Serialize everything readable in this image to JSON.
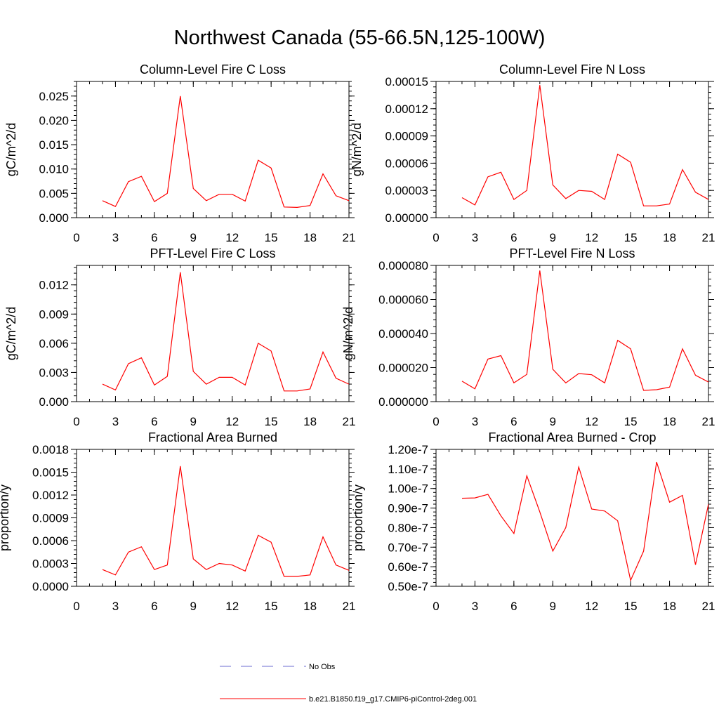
{
  "page_title": "Northwest Canada (55-66.5N,125-100W)",
  "legend": {
    "items": [
      {
        "label": "No Obs",
        "color": "#6b6bd0",
        "dashed": true
      },
      {
        "label": "b.e21.B1850.f19_g17.CMIP6-piControl-2deg.001",
        "color": "#ff0000",
        "dashed": false
      }
    ]
  },
  "chart_data": [
    {
      "type": "line",
      "title": "Column-Level Fire C Loss",
      "ylabel": "gC/m^2/d",
      "xlim": [
        0,
        21
      ],
      "ylim": [
        0,
        0.028
      ],
      "x_ticks": [
        "0",
        "3",
        "6",
        "9",
        "12",
        "15",
        "18",
        "21"
      ],
      "y_ticks": [
        {
          "v": 0,
          "label": "0.000"
        },
        {
          "v": 0.005,
          "label": "0.005"
        },
        {
          "v": 0.01,
          "label": "0.010"
        },
        {
          "v": 0.015,
          "label": "0.015"
        },
        {
          "v": 0.02,
          "label": "0.020"
        },
        {
          "v": 0.025,
          "label": "0.025"
        }
      ],
      "series": [
        {
          "color": "#ff0000",
          "x": [
            2,
            3,
            4,
            5,
            6,
            7,
            8,
            9,
            10,
            11,
            12,
            13,
            14,
            15,
            16,
            17,
            18,
            19,
            20,
            21
          ],
          "values": [
            0.0035,
            0.0023,
            0.0074,
            0.0085,
            0.0033,
            0.005,
            0.025,
            0.006,
            0.0035,
            0.0048,
            0.0048,
            0.0034,
            0.0118,
            0.0102,
            0.0022,
            0.0021,
            0.0025,
            0.009,
            0.0045,
            0.0035
          ]
        }
      ]
    },
    {
      "type": "line",
      "title": "Column-Level Fire N Loss",
      "ylabel": "gN/m^2/d",
      "xlim": [
        0,
        21
      ],
      "ylim": [
        0,
        0.00015
      ],
      "x_ticks": [
        "0",
        "3",
        "6",
        "9",
        "12",
        "15",
        "18",
        "21"
      ],
      "y_ticks": [
        {
          "v": 0,
          "label": "0.00000"
        },
        {
          "v": 3e-05,
          "label": "0.00003"
        },
        {
          "v": 6e-05,
          "label": "0.00006"
        },
        {
          "v": 9e-05,
          "label": "0.00009"
        },
        {
          "v": 0.00012,
          "label": "0.00012"
        },
        {
          "v": 0.00015,
          "label": "0.00015"
        }
      ],
      "series": [
        {
          "color": "#ff0000",
          "x": [
            2,
            3,
            4,
            5,
            6,
            7,
            8,
            9,
            10,
            11,
            12,
            13,
            14,
            15,
            16,
            17,
            18,
            19,
            20,
            21
          ],
          "values": [
            2.2e-05,
            1.4e-05,
            4.5e-05,
            5e-05,
            2e-05,
            3e-05,
            0.000146,
            3.6e-05,
            2.1e-05,
            3e-05,
            2.9e-05,
            2e-05,
            7e-05,
            6.1e-05,
            1.3e-05,
            1.3e-05,
            1.5e-05,
            5.3e-05,
            2.8e-05,
            2e-05
          ]
        }
      ]
    },
    {
      "type": "line",
      "title": "PFT-Level Fire C Loss",
      "ylabel": "gC/m^2/d",
      "xlim": [
        0,
        21
      ],
      "ylim": [
        0,
        0.014
      ],
      "x_ticks": [
        "0",
        "3",
        "6",
        "9",
        "12",
        "15",
        "18",
        "21"
      ],
      "y_ticks": [
        {
          "v": 0,
          "label": "0.000"
        },
        {
          "v": 0.003,
          "label": "0.003"
        },
        {
          "v": 0.006,
          "label": "0.006"
        },
        {
          "v": 0.009,
          "label": "0.009"
        },
        {
          "v": 0.012,
          "label": "0.012"
        }
      ],
      "series": [
        {
          "color": "#ff0000",
          "x": [
            2,
            3,
            4,
            5,
            6,
            7,
            8,
            9,
            10,
            11,
            12,
            13,
            14,
            15,
            16,
            17,
            18,
            19,
            20,
            21
          ],
          "values": [
            0.0018,
            0.0012,
            0.0039,
            0.0045,
            0.0017,
            0.0026,
            0.0133,
            0.0031,
            0.0018,
            0.0025,
            0.0025,
            0.0017,
            0.006,
            0.0052,
            0.0011,
            0.0011,
            0.0013,
            0.0051,
            0.0024,
            0.0018
          ]
        }
      ]
    },
    {
      "type": "line",
      "title": "PFT-Level Fire N Loss",
      "ylabel": "gN/m^2/d",
      "xlim": [
        0,
        21
      ],
      "ylim": [
        0,
        8e-05
      ],
      "x_ticks": [
        "0",
        "3",
        "6",
        "9",
        "12",
        "15",
        "18",
        "21"
      ],
      "y_ticks": [
        {
          "v": 0,
          "label": "0.000000"
        },
        {
          "v": 2e-05,
          "label": "0.000020"
        },
        {
          "v": 4e-05,
          "label": "0.000040"
        },
        {
          "v": 6e-05,
          "label": "0.000060"
        },
        {
          "v": 8e-05,
          "label": "0.000080"
        }
      ],
      "series": [
        {
          "color": "#ff0000",
          "x": [
            2,
            3,
            4,
            5,
            6,
            7,
            8,
            9,
            10,
            11,
            12,
            13,
            14,
            15,
            16,
            17,
            18,
            19,
            20,
            21
          ],
          "values": [
            1.2e-05,
            7.5e-06,
            2.5e-05,
            2.7e-05,
            1.1e-05,
            1.6e-05,
            7.7e-05,
            1.9e-05,
            1.1e-05,
            1.65e-05,
            1.58e-05,
            1.1e-05,
            3.6e-05,
            3.1e-05,
            6.6e-06,
            7e-06,
            8.5e-06,
            3.1e-05,
            1.55e-05,
            1.15e-05
          ]
        }
      ]
    },
    {
      "type": "line",
      "title": "Fractional Area Burned",
      "ylabel": "proportion/y",
      "xlim": [
        0,
        21
      ],
      "ylim": [
        0,
        0.0018
      ],
      "x_ticks": [
        "0",
        "3",
        "6",
        "9",
        "12",
        "15",
        "18",
        "21"
      ],
      "y_ticks": [
        {
          "v": 0,
          "label": "0.0000"
        },
        {
          "v": 0.0003,
          "label": "0.0003"
        },
        {
          "v": 0.0006,
          "label": "0.0006"
        },
        {
          "v": 0.0009,
          "label": "0.0009"
        },
        {
          "v": 0.0012,
          "label": "0.0012"
        },
        {
          "v": 0.0015,
          "label": "0.0015"
        },
        {
          "v": 0.0018,
          "label": "0.0018"
        }
      ],
      "series": [
        {
          "color": "#ff0000",
          "x": [
            2,
            3,
            4,
            5,
            6,
            7,
            8,
            9,
            10,
            11,
            12,
            13,
            14,
            15,
            16,
            17,
            18,
            19,
            20,
            21
          ],
          "values": [
            0.00022,
            0.00015,
            0.00045,
            0.00052,
            0.00022,
            0.00028,
            0.00158,
            0.00036,
            0.00022,
            0.0003,
            0.00028,
            0.0002,
            0.00067,
            0.00058,
            0.00013,
            0.00013,
            0.00015,
            0.00065,
            0.00028,
            0.00021
          ]
        }
      ]
    },
    {
      "type": "line",
      "title": "Fractional Area Burned - Crop",
      "ylabel": "proportion/y",
      "xlim": [
        0,
        21
      ],
      "ylim": [
        5e-08,
        1.2e-07
      ],
      "x_ticks": [
        "0",
        "3",
        "6",
        "9",
        "12",
        "15",
        "18",
        "21"
      ],
      "y_ticks": [
        {
          "v": 5e-08,
          "label": "0.50e-7"
        },
        {
          "v": 6e-08,
          "label": "0.60e-7"
        },
        {
          "v": 7e-08,
          "label": "0.70e-7"
        },
        {
          "v": 8e-08,
          "label": "0.80e-7"
        },
        {
          "v": 9e-08,
          "label": "0.90e-7"
        },
        {
          "v": 1e-07,
          "label": "1.00e-7"
        },
        {
          "v": 1.1e-07,
          "label": "1.10e-7"
        },
        {
          "v": 1.2e-07,
          "label": "1.20e-7"
        }
      ],
      "series": [
        {
          "color": "#ff0000",
          "x": [
            2,
            3,
            4,
            5,
            6,
            7,
            8,
            9,
            10,
            11,
            12,
            13,
            14,
            15,
            16,
            17,
            18,
            19,
            20,
            21
          ],
          "values": [
            9.5e-08,
            9.52e-08,
            9.7e-08,
            8.6e-08,
            7.7e-08,
            1.065e-07,
            8.8e-08,
            6.8e-08,
            8e-08,
            1.11e-07,
            8.95e-08,
            8.85e-08,
            8.35e-08,
            5.3e-08,
            6.8e-08,
            1.135e-07,
            9.3e-08,
            9.65e-08,
            6.1e-08,
            9.2e-08
          ]
        }
      ]
    }
  ]
}
